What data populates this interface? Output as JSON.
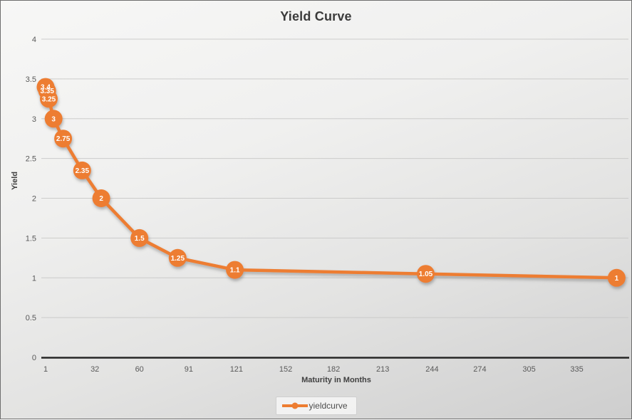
{
  "chart_data": {
    "type": "line",
    "title": "Yield Curve",
    "xlabel": "Maturity in Months",
    "ylabel": "Yield",
    "series": [
      {
        "name": "yieldcurve",
        "x": [
          1,
          2,
          3,
          6,
          12,
          24,
          36,
          60,
          84,
          120,
          240,
          360
        ],
        "y": [
          3.4,
          3.35,
          3.25,
          3,
          2.75,
          2.35,
          2,
          1.5,
          1.25,
          1.1,
          1.05,
          1
        ],
        "point_labels": [
          "3.4",
          "3.35",
          "3.25",
          "3",
          "2.75",
          "2.35",
          "2",
          "1.5",
          "1.25",
          "1.1",
          "1.05",
          "1"
        ],
        "color": "#ED7D31"
      }
    ],
    "xticks": [
      1,
      32,
      60,
      91,
      121,
      152,
      182,
      213,
      244,
      274,
      305,
      335
    ],
    "yticks": [
      0,
      0.5,
      1,
      1.5,
      2,
      2.5,
      3,
      3.5,
      4
    ],
    "xlim": [
      1,
      367
    ],
    "ylim": [
      0,
      4
    ],
    "grid": "horizontal",
    "legend_position": "bottom",
    "data_labels": "inside-marker",
    "colors": {
      "series": "#ED7D31",
      "marker_label_text": "#ffffff",
      "axis_line": "#262626",
      "tick_text": "#595959",
      "gridline": "#c6c6c5",
      "title_text": "#3b3b3b"
    }
  }
}
